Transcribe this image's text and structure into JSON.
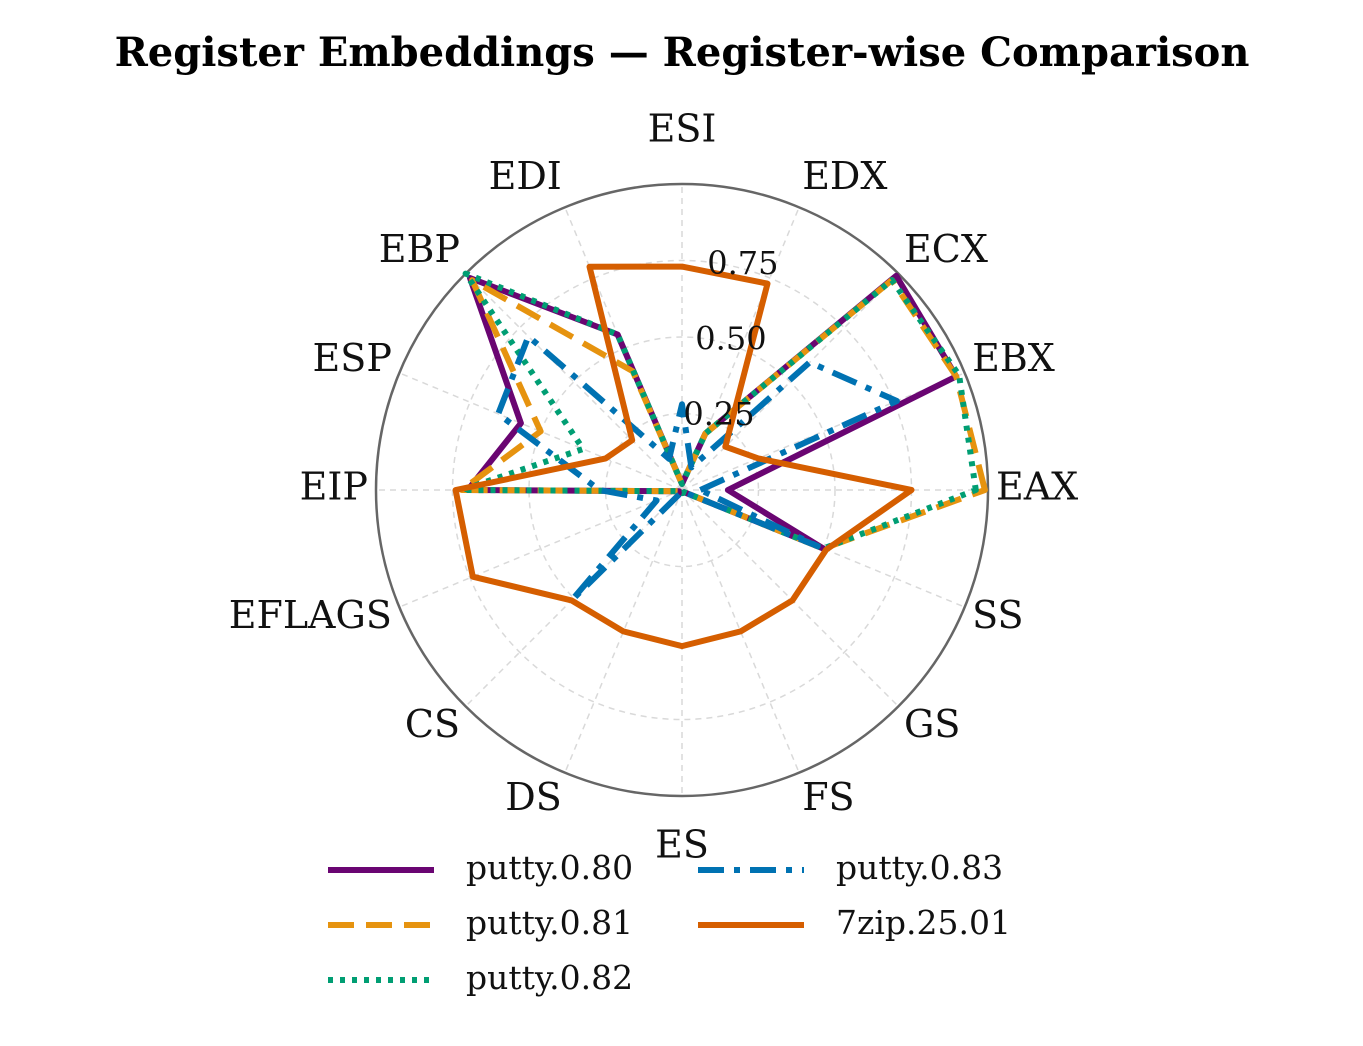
{
  "chart_data": {
    "type": "radar",
    "title": "Register Embeddings — Register-wise Comparison",
    "categories": [
      "EAX",
      "EBX",
      "ECX",
      "EDX",
      "ESI",
      "EDI",
      "EBP",
      "ESP",
      "EIP",
      "EFLAGS",
      "CS",
      "DS",
      "ES",
      "FS",
      "GS",
      "SS"
    ],
    "rlim": [
      0,
      1
    ],
    "rticks": [
      0.25,
      0.5,
      0.75
    ],
    "rtick_labels": [
      "0.25",
      "0.50",
      "0.75"
    ],
    "grid": true,
    "legend_position": "bottom",
    "legend_columns": 2,
    "series": [
      {
        "name": "putty.0.80",
        "color": "#6a0572",
        "dash": "solid",
        "values": [
          0.15,
          0.97,
          0.99,
          0.2,
          0.02,
          0.55,
          0.98,
          0.57,
          0.7,
          0.01,
          0.01,
          0.01,
          0.01,
          0.01,
          0.01,
          0.5
        ]
      },
      {
        "name": "putty.0.81",
        "color": "#e6930f",
        "dash": "dashed",
        "values": [
          0.99,
          0.97,
          0.97,
          0.2,
          0.02,
          0.42,
          0.97,
          0.5,
          0.72,
          0.01,
          0.01,
          0.01,
          0.01,
          0.01,
          0.01,
          0.5
        ]
      },
      {
        "name": "putty.0.82",
        "color": "#009e73",
        "dash": "dotted",
        "values": [
          0.96,
          0.98,
          0.97,
          0.2,
          0.02,
          0.55,
          1.0,
          0.35,
          0.72,
          0.01,
          0.01,
          0.01,
          0.01,
          0.01,
          0.01,
          0.5
        ]
      },
      {
        "name": "putty.0.83",
        "color": "#0072b2",
        "dash": "dashdot",
        "values": [
          0.06,
          0.76,
          0.59,
          0.08,
          0.28,
          0.11,
          0.71,
          0.65,
          0.27,
          0.09,
          0.51,
          0.01,
          0.01,
          0.01,
          0.01,
          0.48
        ]
      },
      {
        "name": "7zip.25.01",
        "color": "#d55e00",
        "dash": "solid",
        "values": [
          0.75,
          0.27,
          0.2,
          0.73,
          0.73,
          0.79,
          0.23,
          0.27,
          0.74,
          0.74,
          0.51,
          0.5,
          0.51,
          0.5,
          0.51,
          0.51
        ]
      }
    ]
  }
}
